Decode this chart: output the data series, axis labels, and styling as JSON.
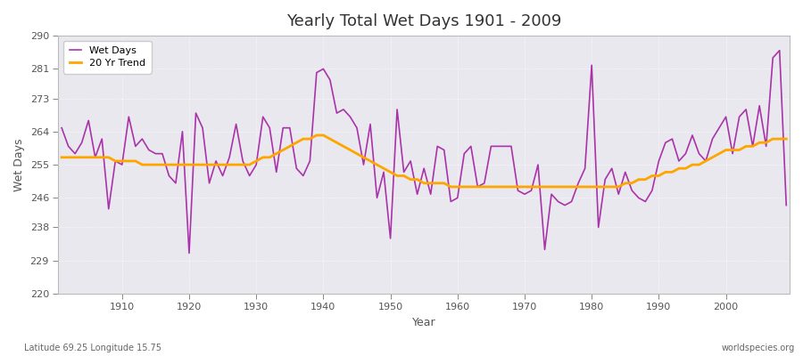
{
  "title": "Yearly Total Wet Days 1901 - 2009",
  "xlabel": "Year",
  "ylabel": "Wet Days",
  "footnote_left": "Latitude 69.25 Longitude 15.75",
  "footnote_right": "worldspecies.org",
  "ylim": [
    220,
    290
  ],
  "yticks": [
    220,
    229,
    238,
    246,
    255,
    264,
    273,
    281,
    290
  ],
  "xlim": [
    1901,
    2009
  ],
  "xticks": [
    1910,
    1920,
    1930,
    1940,
    1950,
    1960,
    1970,
    1980,
    1990,
    2000
  ],
  "wet_days_color": "#AA33AA",
  "trend_color": "#FFA500",
  "bg_color": "#FFFFFF",
  "plot_bg_color": "#E8E8EE",
  "years": [
    1901,
    1902,
    1903,
    1904,
    1905,
    1906,
    1907,
    1908,
    1909,
    1910,
    1911,
    1912,
    1913,
    1914,
    1915,
    1916,
    1917,
    1918,
    1919,
    1920,
    1921,
    1922,
    1923,
    1924,
    1925,
    1926,
    1927,
    1928,
    1929,
    1930,
    1931,
    1932,
    1933,
    1934,
    1935,
    1936,
    1937,
    1938,
    1939,
    1940,
    1941,
    1942,
    1943,
    1944,
    1945,
    1946,
    1947,
    1948,
    1949,
    1950,
    1951,
    1952,
    1953,
    1954,
    1955,
    1956,
    1957,
    1958,
    1959,
    1960,
    1961,
    1962,
    1963,
    1964,
    1965,
    1966,
    1967,
    1968,
    1969,
    1970,
    1971,
    1972,
    1973,
    1974,
    1975,
    1976,
    1977,
    1978,
    1979,
    1980,
    1981,
    1982,
    1983,
    1984,
    1985,
    1986,
    1987,
    1988,
    1989,
    1990,
    1991,
    1992,
    1993,
    1994,
    1995,
    1996,
    1997,
    1998,
    1999,
    2000,
    2001,
    2002,
    2003,
    2004,
    2005,
    2006,
    2007,
    2008,
    2009
  ],
  "wet_days": [
    265,
    260,
    258,
    261,
    267,
    257,
    262,
    243,
    256,
    255,
    268,
    260,
    262,
    259,
    258,
    258,
    252,
    250,
    264,
    231,
    269,
    265,
    250,
    256,
    252,
    257,
    266,
    256,
    252,
    255,
    268,
    265,
    253,
    265,
    265,
    254,
    252,
    256,
    280,
    281,
    278,
    269,
    270,
    268,
    265,
    255,
    266,
    246,
    253,
    235,
    270,
    253,
    256,
    247,
    254,
    247,
    260,
    259,
    245,
    246,
    258,
    260,
    249,
    250,
    260,
    260,
    260,
    260,
    248,
    247,
    248,
    255,
    232,
    247,
    245,
    244,
    245,
    250,
    254,
    282,
    238,
    251,
    254,
    247,
    253,
    248,
    246,
    245,
    248,
    256,
    261,
    262,
    256,
    258,
    263,
    258,
    256,
    262,
    265,
    268,
    258,
    268,
    270,
    260,
    271,
    260,
    284,
    286,
    244
  ],
  "trend": [
    257,
    257,
    257,
    257,
    257,
    257,
    257,
    257,
    256,
    256,
    256,
    256,
    255,
    255,
    255,
    255,
    255,
    255,
    255,
    255,
    255,
    255,
    255,
    255,
    255,
    255,
    255,
    255,
    255,
    256,
    257,
    257,
    258,
    259,
    260,
    261,
    262,
    262,
    263,
    263,
    262,
    261,
    260,
    259,
    258,
    257,
    256,
    255,
    254,
    253,
    252,
    252,
    251,
    251,
    250,
    250,
    250,
    250,
    249,
    249,
    249,
    249,
    249,
    249,
    249,
    249,
    249,
    249,
    249,
    249,
    249,
    249,
    249,
    249,
    249,
    249,
    249,
    249,
    249,
    249,
    249,
    249,
    249,
    249,
    250,
    250,
    251,
    251,
    252,
    252,
    253,
    253,
    254,
    254,
    255,
    255,
    256,
    257,
    258,
    259,
    259,
    259,
    260,
    260,
    261,
    261,
    262,
    262,
    262
  ]
}
